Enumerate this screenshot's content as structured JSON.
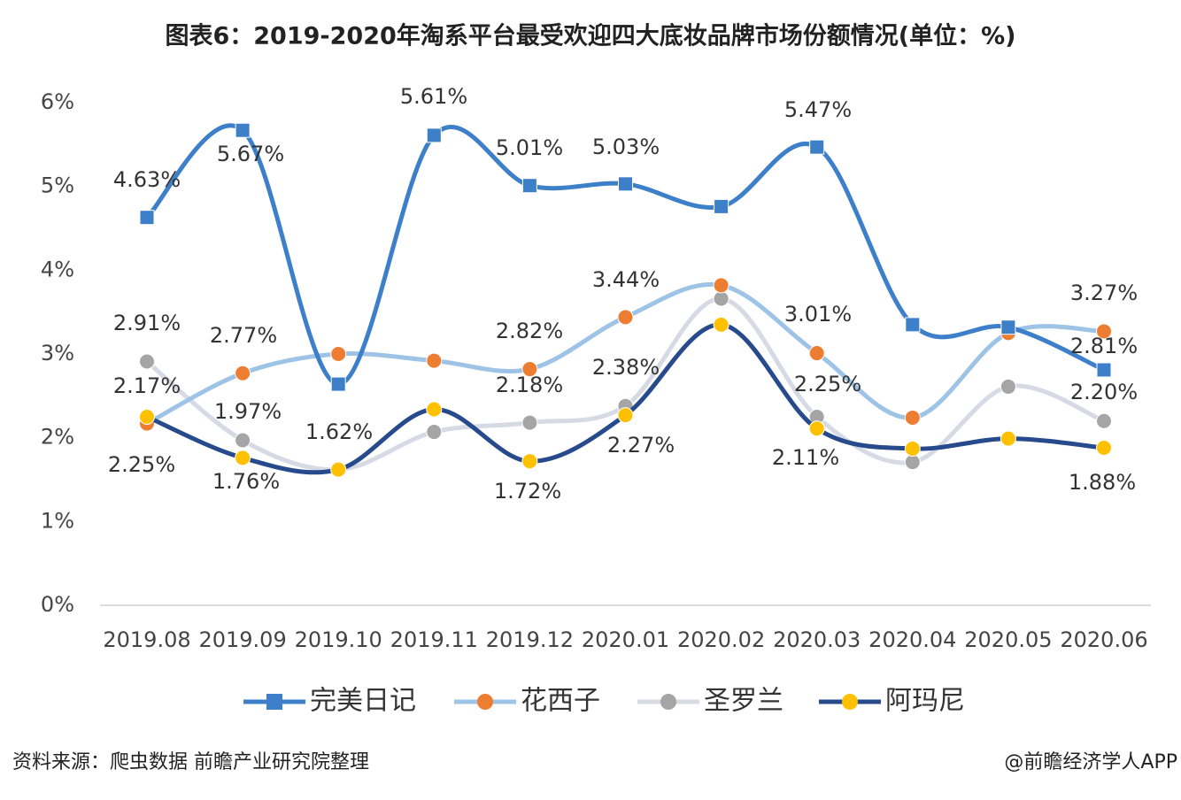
{
  "chart_data": {
    "type": "line",
    "title": "图表6：2019-2020年淘系平台最受欢迎四大底妆品牌市场份额情况(单位：%)",
    "source": "资料来源：爬虫数据 前瞻产业研究院整理",
    "credit": "@前瞻经济学人APP",
    "categories": [
      "2019.08",
      "2019.09",
      "2019.10",
      "2019.11",
      "2019.12",
      "2020.01",
      "2020.02",
      "2020.03",
      "2020.04",
      "2020.05",
      "2020.06"
    ],
    "ylim": [
      0,
      6
    ],
    "yticks": [
      {
        "value": 0,
        "label": "0%"
      },
      {
        "value": 1,
        "label": "1%"
      },
      {
        "value": 2,
        "label": "2%"
      },
      {
        "value": 3,
        "label": "3%"
      },
      {
        "value": 4,
        "label": "4%"
      },
      {
        "value": 5,
        "label": "5%"
      },
      {
        "value": 6,
        "label": "6%"
      }
    ],
    "grid": false,
    "legend": "bottom",
    "series": [
      {
        "name": "完美日记",
        "color": "#3d7fc9",
        "marker": "square",
        "marker_color": "#3d7fc9",
        "values": [
          4.63,
          5.67,
          2.64,
          5.61,
          5.01,
          5.03,
          4.76,
          5.47,
          3.35,
          3.32,
          2.81
        ],
        "value_labels": [
          "4.63%",
          "5.67%",
          null,
          "5.61%",
          "5.01%",
          "5.03%",
          null,
          "5.47%",
          null,
          null,
          "2.81%"
        ]
      },
      {
        "name": "花西子",
        "color": "#9dc3e6",
        "marker": "circle",
        "marker_color": "#ed7d31",
        "values": [
          2.17,
          2.77,
          3.0,
          2.92,
          2.82,
          3.44,
          3.82,
          3.01,
          2.24,
          3.25,
          3.27
        ],
        "value_labels": [
          "2.17%",
          "2.77%",
          null,
          null,
          "2.82%",
          "3.44%",
          null,
          "3.01%",
          null,
          null,
          "3.27%"
        ]
      },
      {
        "name": "圣罗兰",
        "color": "#d5dae5",
        "marker": "circle",
        "marker_color": "#a5a5a5",
        "values": [
          2.91,
          1.97,
          1.62,
          2.07,
          2.18,
          2.38,
          3.66,
          2.25,
          1.71,
          2.61,
          2.2
        ],
        "value_labels": [
          "2.91%",
          "1.97%",
          null,
          null,
          "2.18%",
          "2.38%",
          null,
          "2.25%",
          null,
          null,
          "2.20%"
        ]
      },
      {
        "name": "阿玛尼",
        "color": "#264a8c",
        "marker": "circle",
        "marker_color": "#ffc000",
        "values": [
          2.25,
          1.76,
          1.62,
          2.34,
          1.72,
          2.27,
          3.35,
          2.11,
          1.87,
          1.99,
          1.88
        ],
        "value_labels": [
          "2.25%",
          "1.76%",
          "1.62%",
          null,
          "1.72%",
          "2.27%",
          null,
          "2.11%",
          null,
          null,
          "1.88%"
        ]
      }
    ]
  }
}
